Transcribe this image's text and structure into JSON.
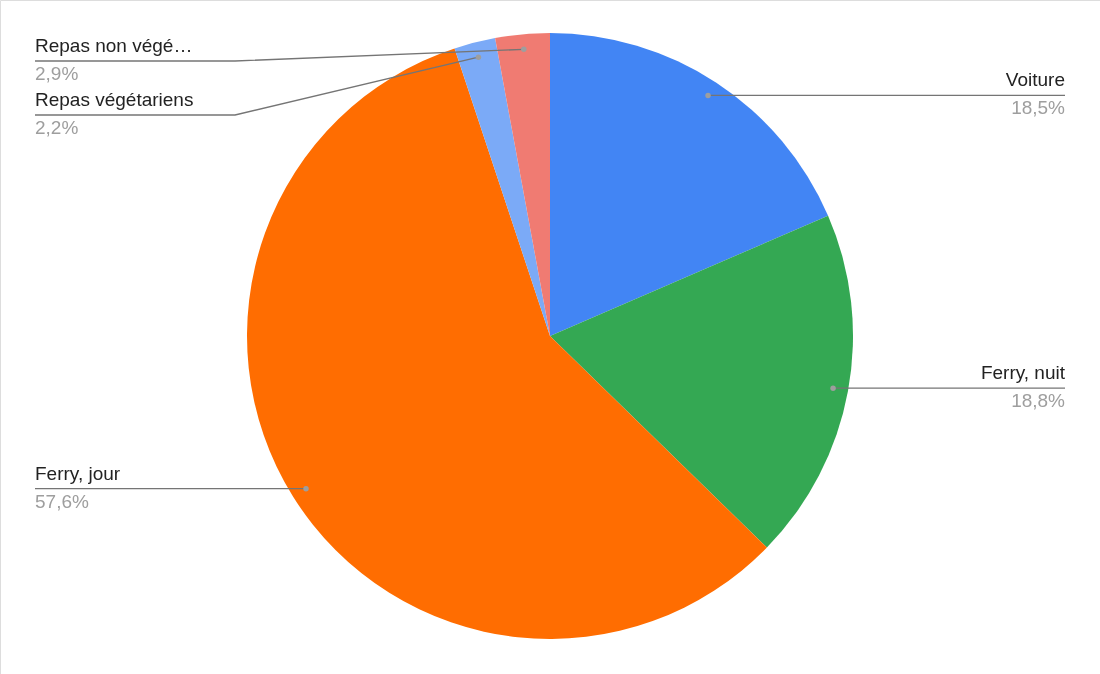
{
  "chart_data": {
    "type": "pie",
    "categories": [
      "Voiture",
      "Ferry, nuit",
      "Ferry, jour",
      "Repas végétariens",
      "Repas non végé…"
    ],
    "values": [
      18.5,
      18.8,
      57.6,
      2.2,
      2.9
    ],
    "colors": [
      "#4285f4",
      "#34a853",
      "#ff6d01",
      "#7baaf7",
      "#f07b72"
    ],
    "value_labels": [
      "18,5%",
      "18,8%",
      "57,6%",
      "2,2%",
      "2,9%"
    ]
  }
}
